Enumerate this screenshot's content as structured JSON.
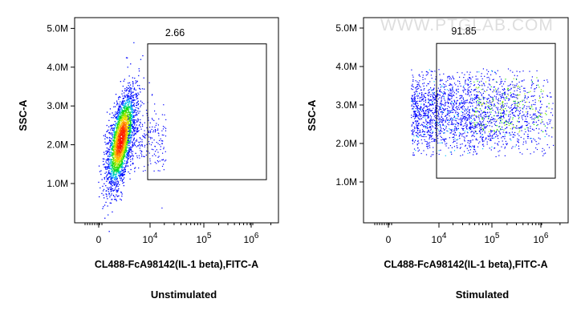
{
  "watermark": "WWW.PTGLAB.COM",
  "chart_data": [
    {
      "type": "scatter",
      "subtype": "flow-cytometry-density",
      "caption": "Unstimulated",
      "xlabel": "CL488-FcA98142(IL-1 beta),FITC-A",
      "ylabel": "SSC-A",
      "x_scale": "biexponential",
      "y_ticks": [
        "1.0M",
        "2.0M",
        "3.0M",
        "4.0M",
        "5.0M"
      ],
      "x_ticks": [
        "0",
        "10^4",
        "10^5",
        "10^6"
      ],
      "gate": {
        "x_min": 10000,
        "x_max": 2500000,
        "y_min": 1100000,
        "y_max": 4600000,
        "percent_label": "2.66"
      },
      "population": {
        "x_center": 4500,
        "y_center": 2150000,
        "y_spread": 550000,
        "shape": "tight-elongated"
      },
      "colors": {
        "low": "#0000ff",
        "mid": "#00ff00",
        "high": "#ff0000"
      }
    },
    {
      "type": "scatter",
      "subtype": "flow-cytometry-density",
      "caption": "Stimulated",
      "xlabel": "CL488-FcA98142(IL-1 beta),FITC-A",
      "ylabel": "SSC-A",
      "x_scale": "biexponential",
      "y_ticks": [
        "1.0M",
        "2.0M",
        "3.0M",
        "4.0M",
        "5.0M"
      ],
      "x_ticks": [
        "0",
        "10^4",
        "10^5",
        "10^6"
      ],
      "gate": {
        "x_min": 10000,
        "x_max": 2500000,
        "y_min": 1100000,
        "y_max": 4600000,
        "percent_label": "91.85"
      },
      "population": {
        "x_center": 200000,
        "y_center": 2800000,
        "y_spread": 1000000,
        "shape": "broad"
      },
      "colors": {
        "low": "#0000ff",
        "mid": "#00ff00",
        "high": "#ff0000"
      }
    }
  ]
}
